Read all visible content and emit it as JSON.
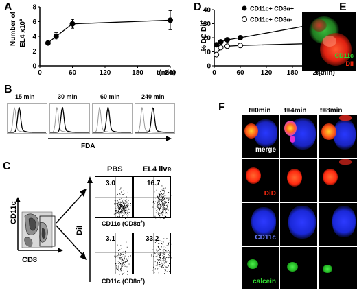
{
  "panels": {
    "A": "A",
    "B": "B",
    "C": "C",
    "D": "D",
    "E": "E",
    "F": "F"
  },
  "chart_data": [
    {
      "type": "line",
      "panel": "A",
      "ylabel_line1": "Number of",
      "ylabel_line2": "EL4 x10",
      "ylabel_sup": "6",
      "xlabel": "t(min)",
      "x_ticks": [
        "0",
        "60",
        "120",
        "180",
        "240"
      ],
      "y_ticks": [
        "0",
        "2",
        "4",
        "6",
        "8"
      ],
      "xlim": [
        0,
        240
      ],
      "ylim": [
        0,
        8
      ],
      "series": [
        {
          "x": [
            15,
            30,
            60,
            240
          ],
          "y": [
            3.1,
            4.0,
            5.7,
            6.2
          ],
          "err": [
            0.2,
            0.5,
            0.6,
            1.3
          ]
        }
      ]
    },
    {
      "type": "line",
      "panel": "D",
      "ylabel": "% DC DiI",
      "ylabel_sup": "+",
      "xlabel": "t(min)",
      "x_ticks": [
        "0",
        "60",
        "120",
        "180",
        "240"
      ],
      "y_ticks": [
        "0",
        "10",
        "20",
        "30",
        "40"
      ],
      "xlim": [
        0,
        240
      ],
      "ylim": [
        0,
        40
      ],
      "series": [
        {
          "name": "CD11c+ CD8α+",
          "marker": "filled",
          "x": [
            5,
            15,
            30,
            60,
            240
          ],
          "y": [
            15,
            17,
            18.5,
            20,
            30
          ],
          "err": [
            0.8,
            1,
            1,
            1,
            3
          ]
        },
        {
          "name": "CD11c+ CD8α-",
          "marker": "open",
          "x": [
            5,
            15,
            30,
            60,
            240
          ],
          "y": [
            8,
            13,
            14,
            14.5,
            16
          ],
          "err": [
            0.5,
            0.8,
            0.5,
            0.5,
            0.8
          ]
        }
      ]
    }
  ],
  "panelB": {
    "times": [
      "15 min",
      "30 min",
      "60 min",
      "240 min"
    ],
    "xlabel": "FDA"
  },
  "panelC": {
    "ylabel_left": "CD11c",
    "xlabel_left": "CD8",
    "col_labels": [
      "PBS",
      "EL4 live"
    ],
    "ylabel_right": "DiI",
    "top_values": [
      "3.0",
      "16.7"
    ],
    "bottom_values": [
      "3.1",
      "33.2"
    ],
    "xlabel_top": "CD11c (CD8α",
    "xlabel_top_sup": "+",
    "xlabel_top_close": ")",
    "xlabel_bottom": "CD11c (CD8α",
    "xlabel_bottom_sup": "+",
    "xlabel_bottom_close": ")"
  },
  "panelE": {
    "label1": "CD11c",
    "label2": "DiI"
  },
  "panelF": {
    "times": [
      "t=0min",
      "t=4min",
      "t=8min"
    ],
    "rows": [
      "merge",
      "DiD",
      "CD11c",
      "calcein"
    ]
  },
  "colors": {
    "red": "#ff2a10",
    "green": "#2fd62f",
    "blue": "#2a35ff",
    "cd11c_label": "#6a7dff"
  }
}
